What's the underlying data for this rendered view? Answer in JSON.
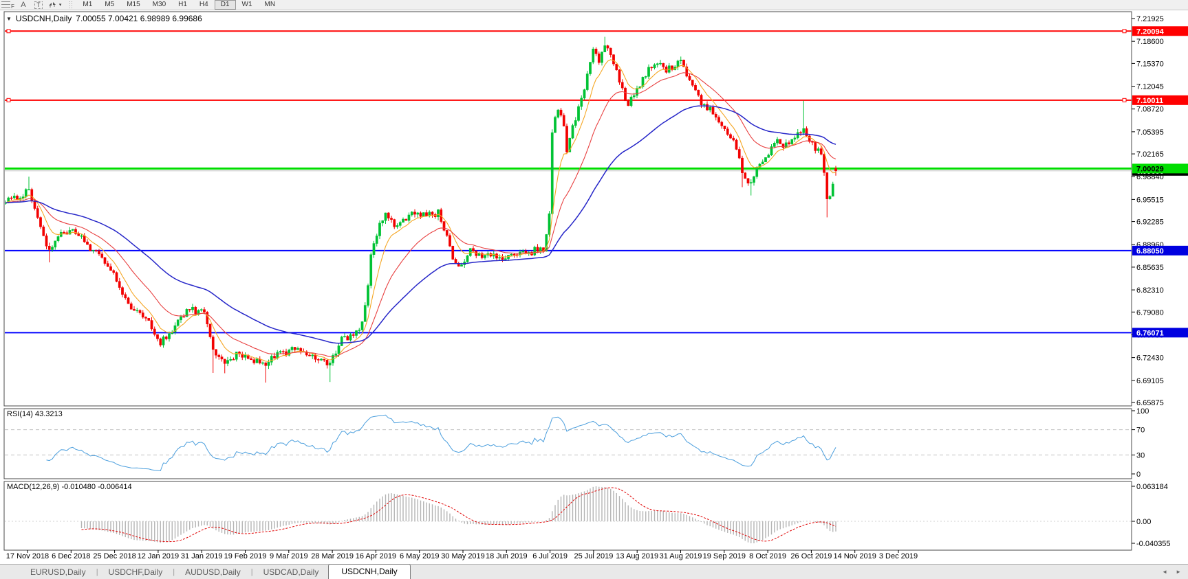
{
  "toolbar": {
    "tools": [
      {
        "name": "fibonacci-tool",
        "glyph": "F"
      },
      {
        "name": "text-tool",
        "glyph": "A"
      },
      {
        "name": "text-label-tool",
        "glyph": "T"
      },
      {
        "name": "arrows-tool",
        "glyph": "arrows"
      }
    ],
    "dropdown_caret": "▾",
    "timeframes": [
      "M1",
      "M5",
      "M15",
      "M30",
      "H1",
      "H4",
      "D1",
      "W1",
      "MN"
    ],
    "active_timeframe": "D1"
  },
  "chart": {
    "title_caret": "▼",
    "title_symbol": "USDCNH,Daily",
    "title_ohlc": "7.00055 7.00421 6.98989 6.99686",
    "rsi_label": "RSI(14) 43.3213",
    "macd_label": "MACD(12,26,9) -0.010480 -0.006414"
  },
  "chart_data": {
    "type": "candlestick",
    "symbol": "USDCNH",
    "timeframe": "Daily",
    "current": {
      "open": 7.00055,
      "high": 7.00421,
      "low": 6.98989,
      "close": 6.99686
    },
    "candle_up_color": "#00c234",
    "candle_down_color": "#f20000",
    "y_axis": {
      "max": 7.21925,
      "min": 6.65875,
      "ticks": [
        "7.21925",
        "7.18600",
        "7.15370",
        "7.12045",
        "7.08720",
        "7.05395",
        "7.02165",
        "6.98840",
        "6.95515",
        "6.92285",
        "6.88960",
        "6.85635",
        "6.82310",
        "6.79080",
        "6.75755",
        "6.72430",
        "6.69105",
        "6.65875"
      ]
    },
    "x_axis": {
      "labels": [
        "17 Nov 2018",
        "6 Dec 2018",
        "25 Dec 2018",
        "12 Jan 2019",
        "31 Jan 2019",
        "19 Feb 2019",
        "9 Mar 2019",
        "28 Mar 2019",
        "16 Apr 2019",
        "6 May 2019",
        "30 May 2019",
        "18 Jun 2019",
        "6 Jul 2019",
        "25 Jul 2019",
        "13 Aug 2019",
        "31 Aug 2019",
        "19 Sep 2019",
        "8 Oct 2019",
        "26 Oct 2019",
        "14 Nov 2019",
        "3 Dec 2019"
      ]
    },
    "levels": [
      {
        "price": 7.20094,
        "color": "#ff0000",
        "width": 2,
        "badge_bg": "#ff0000",
        "badge_fg": "#ffffff",
        "label": "7.20094",
        "handles": true
      },
      {
        "price": 7.10011,
        "color": "#ff0000",
        "width": 2,
        "badge_bg": "#ff0000",
        "badge_fg": "#ffffff",
        "label": "7.10011",
        "handles": true
      },
      {
        "price": 6.8805,
        "color": "#0000ff",
        "width": 2,
        "badge_bg": "#0000e0",
        "badge_fg": "#ffffff",
        "label": "6.88050",
        "handles": false
      },
      {
        "price": 6.76071,
        "color": "#0000ff",
        "width": 2,
        "badge_bg": "#0000e0",
        "badge_fg": "#ffffff",
        "label": "6.76071",
        "handles": false
      },
      {
        "price": 6.99686,
        "color": "#c0c0c0",
        "width": 1,
        "badge_bg": "#000000",
        "badge_fg": "#ffffff",
        "label": "6.99686",
        "handles": false
      },
      {
        "price": 7.00029,
        "color": "#00dd00",
        "width": 3,
        "badge_bg": "#00dd00",
        "badge_fg": "#000000",
        "label": "7.00029",
        "handles": false
      }
    ],
    "moving_averages": [
      {
        "period": 8,
        "color": "#f5a623",
        "width": 1.1
      },
      {
        "period": 21,
        "color": "#e84040",
        "width": 1.1
      },
      {
        "period": 55,
        "color": "#2525c8",
        "width": 1.5
      }
    ],
    "rsi": {
      "period": 14,
      "current": 43.3213,
      "overbought": 70,
      "oversold": 30,
      "ticks": [
        "100",
        "70",
        "30",
        "0"
      ],
      "color": "#4a9edd",
      "level_color": "#c0c0c0"
    },
    "macd": {
      "fast": 12,
      "slow": 26,
      "signal": 9,
      "current_macd": -0.01048,
      "current_signal": -0.006414,
      "ticks": [
        "0.063184",
        "0.00",
        "-0.040355"
      ],
      "hist_color": "#b4b4b4",
      "signal_color": "#e00000"
    },
    "bars": 285,
    "price_path": [
      [
        0,
        6.95
      ],
      [
        4,
        6.96
      ],
      [
        8,
        6.968
      ],
      [
        11,
        6.93
      ],
      [
        15,
        6.88
      ],
      [
        19,
        6.905
      ],
      [
        24,
        6.91
      ],
      [
        29,
        6.885
      ],
      [
        33,
        6.872
      ],
      [
        38,
        6.84
      ],
      [
        42,
        6.8
      ],
      [
        45,
        6.792
      ],
      [
        49,
        6.775
      ],
      [
        53,
        6.745
      ],
      [
        58,
        6.77
      ],
      [
        63,
        6.795
      ],
      [
        68,
        6.788
      ],
      [
        71,
        6.735
      ],
      [
        75,
        6.715
      ],
      [
        79,
        6.73
      ],
      [
        84,
        6.72
      ],
      [
        89,
        6.712
      ],
      [
        93,
        6.73
      ],
      [
        98,
        6.735
      ],
      [
        103,
        6.73
      ],
      [
        108,
        6.725
      ],
      [
        111,
        6.715
      ],
      [
        115,
        6.75
      ],
      [
        118,
        6.755
      ],
      [
        121,
        6.76
      ],
      [
        123,
        6.8
      ],
      [
        125,
        6.87
      ],
      [
        128,
        6.92
      ],
      [
        130,
        6.935
      ],
      [
        133,
        6.92
      ],
      [
        137,
        6.928
      ],
      [
        141,
        6.935
      ],
      [
        144,
        6.93
      ],
      [
        148,
        6.935
      ],
      [
        151,
        6.9
      ],
      [
        153,
        6.865
      ],
      [
        156,
        6.855
      ],
      [
        159,
        6.88
      ],
      [
        163,
        6.87
      ],
      [
        166,
        6.875
      ],
      [
        170,
        6.865
      ],
      [
        173,
        6.88
      ],
      [
        177,
        6.875
      ],
      [
        181,
        6.88
      ],
      [
        184,
        6.885
      ],
      [
        186,
        6.93
      ],
      [
        187,
        7.05
      ],
      [
        189,
        7.09
      ],
      [
        191,
        7.06
      ],
      [
        192,
        7.02
      ],
      [
        194,
        7.06
      ],
      [
        196,
        7.09
      ],
      [
        198,
        7.12
      ],
      [
        200,
        7.16
      ],
      [
        201,
        7.175
      ],
      [
        203,
        7.16
      ],
      [
        205,
        7.185
      ],
      [
        207,
        7.165
      ],
      [
        209,
        7.145
      ],
      [
        211,
        7.115
      ],
      [
        213,
        7.09
      ],
      [
        215,
        7.11
      ],
      [
        217,
        7.125
      ],
      [
        219,
        7.14
      ],
      [
        222,
        7.15
      ],
      [
        224,
        7.155
      ],
      [
        226,
        7.145
      ],
      [
        229,
        7.15
      ],
      [
        231,
        7.16
      ],
      [
        233,
        7.14
      ],
      [
        236,
        7.12
      ],
      [
        238,
        7.095
      ],
      [
        241,
        7.085
      ],
      [
        243,
        7.07
      ],
      [
        245,
        7.06
      ],
      [
        248,
        7.05
      ],
      [
        250,
        7.03
      ],
      [
        252,
        6.995
      ],
      [
        255,
        6.975
      ],
      [
        257,
        7.0
      ],
      [
        259,
        7.015
      ],
      [
        262,
        7.03
      ],
      [
        264,
        7.04
      ],
      [
        266,
        7.035
      ],
      [
        269,
        7.04
      ],
      [
        271,
        7.05
      ],
      [
        273,
        7.06
      ],
      [
        275,
        7.04
      ],
      [
        277,
        7.03
      ],
      [
        279,
        7.025
      ],
      [
        281,
        6.96
      ],
      [
        282,
        6.955
      ],
      [
        283,
        6.975
      ],
      [
        284,
        6.997
      ]
    ],
    "wick_boosts": {
      "8": [
        0.018,
        0
      ],
      "15": [
        0,
        0.015
      ],
      "71": [
        0,
        0.03
      ],
      "75": [
        0,
        0.012
      ],
      "89": [
        0,
        0.02
      ],
      "111": [
        0,
        0.022
      ],
      "205": [
        0.012,
        0
      ],
      "252": [
        0,
        0.018
      ],
      "255": [
        0,
        0.015
      ],
      "273": [
        0.038,
        0
      ],
      "281": [
        0,
        0.024
      ]
    }
  },
  "tabs": {
    "divider": "|",
    "items": [
      "EURUSD,Daily",
      "USDCHF,Daily",
      "AUDUSD,Daily",
      "USDCAD,Daily",
      "USDCNH,Daily"
    ],
    "active": "USDCNH,Daily",
    "scroll_left": "◄",
    "scroll_right": "►"
  }
}
